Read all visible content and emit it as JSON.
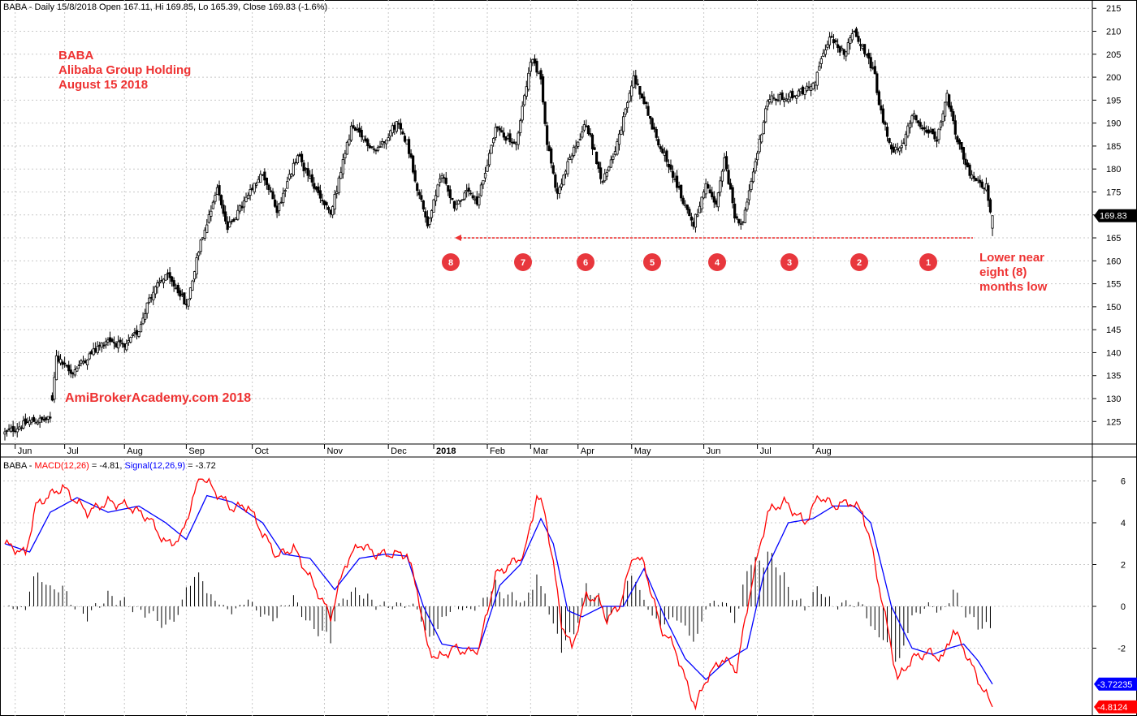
{
  "price_panel": {
    "header": "BABA - Daily 15/8/2018 Open 167.11, Hi 169.85, Lo 165.39, Close 169.83 (-1.6%)",
    "title_lines": [
      "BABA",
      "Alibaba Group Holding",
      "August 15 2018"
    ],
    "watermark": "AmiBrokerAcademy.com  2018",
    "last_price_label": "169.83",
    "annotation_lines": [
      "Lower near",
      "eight (8)",
      "months low"
    ],
    "month_markers": [
      "8",
      "7",
      "6",
      "5",
      "4",
      "3",
      "2",
      "1"
    ]
  },
  "macd_panel": {
    "header_prefix": "BABA - ",
    "macd_label": "MACD(12,26)",
    "macd_value_text": " = -4.81, ",
    "signal_label": "Signal(12,26,9)",
    "signal_value_text": " = -3.72",
    "signal_last_label": "-3.72235",
    "macd_last_label": "-4.8124"
  },
  "colors": {
    "candle": "#000000",
    "macd_line": "#ff0000",
    "signal_line": "#0000ff",
    "annotation": "#ee3333",
    "grid": "#c8c8c8"
  },
  "chart_data": [
    {
      "type": "candlestick",
      "series": [
        {
          "name": "BABA",
          "kind": "ohlc"
        }
      ],
      "y_ticks": [
        125,
        130,
        135,
        140,
        145,
        150,
        155,
        160,
        165,
        170,
        175,
        180,
        185,
        190,
        195,
        200,
        205,
        210,
        215
      ],
      "ylim": [
        121,
        218
      ],
      "x_ticks": [
        "Jun",
        "Jul",
        "Aug",
        "Sep",
        "Oct",
        "Nov",
        "Dec",
        "2018",
        "Feb",
        "Mar",
        "Apr",
        "May",
        "Jun",
        "Jul",
        "Aug"
      ],
      "close_path": [
        {
          "t": 0,
          "v": 122.5
        },
        {
          "t": 12,
          "v": 125
        },
        {
          "t": 22,
          "v": 125.5
        },
        {
          "t": 25,
          "v": 139
        },
        {
          "t": 32,
          "v": 135.5
        },
        {
          "t": 40,
          "v": 139
        },
        {
          "t": 50,
          "v": 143
        },
        {
          "t": 58,
          "v": 141
        },
        {
          "t": 65,
          "v": 145
        },
        {
          "t": 70,
          "v": 152
        },
        {
          "t": 78,
          "v": 157
        },
        {
          "t": 85,
          "v": 153
        },
        {
          "t": 88,
          "v": 150
        },
        {
          "t": 95,
          "v": 164
        },
        {
          "t": 103,
          "v": 176
        },
        {
          "t": 108,
          "v": 167
        },
        {
          "t": 115,
          "v": 172
        },
        {
          "t": 125,
          "v": 179
        },
        {
          "t": 132,
          "v": 171
        },
        {
          "t": 142,
          "v": 183
        },
        {
          "t": 150,
          "v": 176
        },
        {
          "t": 158,
          "v": 170
        },
        {
          "t": 168,
          "v": 189
        },
        {
          "t": 180,
          "v": 184
        },
        {
          "t": 190,
          "v": 190
        },
        {
          "t": 195,
          "v": 186
        },
        {
          "t": 200,
          "v": 176
        },
        {
          "t": 205,
          "v": 168
        },
        {
          "t": 212,
          "v": 179
        },
        {
          "t": 218,
          "v": 172
        },
        {
          "t": 225,
          "v": 175
        },
        {
          "t": 229,
          "v": 172
        },
        {
          "t": 238,
          "v": 189
        },
        {
          "t": 248,
          "v": 185
        },
        {
          "t": 255,
          "v": 204
        },
        {
          "t": 260,
          "v": 200
        },
        {
          "t": 263,
          "v": 186
        },
        {
          "t": 268,
          "v": 174
        },
        {
          "t": 273,
          "v": 181
        },
        {
          "t": 282,
          "v": 190
        },
        {
          "t": 290,
          "v": 177
        },
        {
          "t": 298,
          "v": 187
        },
        {
          "t": 305,
          "v": 200
        },
        {
          "t": 310,
          "v": 195
        },
        {
          "t": 315,
          "v": 188
        },
        {
          "t": 322,
          "v": 181
        },
        {
          "t": 328,
          "v": 174
        },
        {
          "t": 334,
          "v": 168
        },
        {
          "t": 340,
          "v": 176
        },
        {
          "t": 345,
          "v": 172
        },
        {
          "t": 349,
          "v": 182
        },
        {
          "t": 354,
          "v": 170
        },
        {
          "t": 358,
          "v": 168
        },
        {
          "t": 362,
          "v": 177
        },
        {
          "t": 370,
          "v": 195
        },
        {
          "t": 382,
          "v": 196
        },
        {
          "t": 392,
          "v": 198
        },
        {
          "t": 400,
          "v": 209
        },
        {
          "t": 407,
          "v": 205
        },
        {
          "t": 412,
          "v": 210
        },
        {
          "t": 418,
          "v": 205
        },
        {
          "t": 422,
          "v": 200
        },
        {
          "t": 424,
          "v": 194
        },
        {
          "t": 430,
          "v": 184
        },
        {
          "t": 435,
          "v": 185
        },
        {
          "t": 440,
          "v": 192
        },
        {
          "t": 448,
          "v": 188
        },
        {
          "t": 452,
          "v": 186
        },
        {
          "t": 457,
          "v": 196
        },
        {
          "t": 462,
          "v": 186
        },
        {
          "t": 467,
          "v": 180
        },
        {
          "t": 470,
          "v": 178
        },
        {
          "t": 476,
          "v": 176
        },
        {
          "t": 478,
          "v": 170
        },
        {
          "t": 479,
          "v": 169.83
        }
      ],
      "last_bar": {
        "open": 167.11,
        "high": 169.85,
        "low": 165.39,
        "close": 169.83
      },
      "support_line": 165,
      "annotations": [
        "Lower near eight (8) months low"
      ]
    },
    {
      "type": "line",
      "series": [
        {
          "name": "MACD(12,26)",
          "last": -4.81,
          "path": [
            {
              "t": 0,
              "v": 3.0
            },
            {
              "t": 10,
              "v": 2.5
            },
            {
              "t": 15,
              "v": 4.8
            },
            {
              "t": 20,
              "v": 5.2
            },
            {
              "t": 28,
              "v": 5.7
            },
            {
              "t": 40,
              "v": 4.5
            },
            {
              "t": 50,
              "v": 5.0
            },
            {
              "t": 60,
              "v": 4.8
            },
            {
              "t": 70,
              "v": 4.2
            },
            {
              "t": 78,
              "v": 3.0
            },
            {
              "t": 85,
              "v": 3.2
            },
            {
              "t": 95,
              "v": 6.3
            },
            {
              "t": 102,
              "v": 5.5
            },
            {
              "t": 110,
              "v": 4.7
            },
            {
              "t": 118,
              "v": 4.8
            },
            {
              "t": 125,
              "v": 3.5
            },
            {
              "t": 132,
              "v": 2.4
            },
            {
              "t": 140,
              "v": 2.8
            },
            {
              "t": 150,
              "v": 1.0
            },
            {
              "t": 158,
              "v": -0.5
            },
            {
              "t": 165,
              "v": 2.0
            },
            {
              "t": 172,
              "v": 3.0
            },
            {
              "t": 180,
              "v": 2.5
            },
            {
              "t": 190,
              "v": 2.5
            },
            {
              "t": 195,
              "v": 2.5
            },
            {
              "t": 200,
              "v": 0.8
            },
            {
              "t": 205,
              "v": -2.0
            },
            {
              "t": 210,
              "v": -2.5
            },
            {
              "t": 218,
              "v": -2.0
            },
            {
              "t": 225,
              "v": -2.2
            },
            {
              "t": 230,
              "v": -2.0
            },
            {
              "t": 238,
              "v": 1.5
            },
            {
              "t": 245,
              "v": 2.0
            },
            {
              "t": 252,
              "v": 2.5
            },
            {
              "t": 258,
              "v": 5.3
            },
            {
              "t": 262,
              "v": 4.5
            },
            {
              "t": 266,
              "v": 2.0
            },
            {
              "t": 270,
              "v": -0.8
            },
            {
              "t": 275,
              "v": -2.0
            },
            {
              "t": 282,
              "v": 0.5
            },
            {
              "t": 288,
              "v": 0.3
            },
            {
              "t": 292,
              "v": -0.6
            },
            {
              "t": 298,
              "v": 0.0
            },
            {
              "t": 305,
              "v": 2.5
            },
            {
              "t": 310,
              "v": 2.0
            },
            {
              "t": 318,
              "v": -1.0
            },
            {
              "t": 325,
              "v": -2.0
            },
            {
              "t": 330,
              "v": -3.5
            },
            {
              "t": 335,
              "v": -4.8
            },
            {
              "t": 340,
              "v": -3.5
            },
            {
              "t": 348,
              "v": -2.5
            },
            {
              "t": 355,
              "v": -3.0
            },
            {
              "t": 362,
              "v": 1.0
            },
            {
              "t": 370,
              "v": 4.5
            },
            {
              "t": 378,
              "v": 5.0
            },
            {
              "t": 388,
              "v": 4.0
            },
            {
              "t": 395,
              "v": 5.3
            },
            {
              "t": 402,
              "v": 4.8
            },
            {
              "t": 410,
              "v": 5.0
            },
            {
              "t": 416,
              "v": 4.5
            },
            {
              "t": 420,
              "v": 3.0
            },
            {
              "t": 428,
              "v": -1.0
            },
            {
              "t": 433,
              "v": -3.5
            },
            {
              "t": 440,
              "v": -2.5
            },
            {
              "t": 448,
              "v": -2.2
            },
            {
              "t": 455,
              "v": -2.5
            },
            {
              "t": 460,
              "v": -1.1
            },
            {
              "t": 465,
              "v": -2.0
            },
            {
              "t": 472,
              "v": -3.5
            },
            {
              "t": 479,
              "v": -4.81
            }
          ]
        },
        {
          "name": "Signal(12,26,9)",
          "last": -3.72,
          "path": [
            {
              "t": 0,
              "v": 3.0
            },
            {
              "t": 12,
              "v": 2.6
            },
            {
              "t": 22,
              "v": 4.5
            },
            {
              "t": 35,
              "v": 5.2
            },
            {
              "t": 50,
              "v": 4.5
            },
            {
              "t": 65,
              "v": 4.8
            },
            {
              "t": 78,
              "v": 4.0
            },
            {
              "t": 88,
              "v": 3.2
            },
            {
              "t": 98,
              "v": 5.3
            },
            {
              "t": 110,
              "v": 5.0
            },
            {
              "t": 125,
              "v": 4.0
            },
            {
              "t": 135,
              "v": 2.5
            },
            {
              "t": 148,
              "v": 2.3
            },
            {
              "t": 160,
              "v": 0.8
            },
            {
              "t": 172,
              "v": 2.3
            },
            {
              "t": 185,
              "v": 2.5
            },
            {
              "t": 195,
              "v": 2.4
            },
            {
              "t": 203,
              "v": 0.0
            },
            {
              "t": 212,
              "v": -1.8
            },
            {
              "t": 222,
              "v": -2.0
            },
            {
              "t": 230,
              "v": -2.0
            },
            {
              "t": 240,
              "v": 1.0
            },
            {
              "t": 250,
              "v": 2.0
            },
            {
              "t": 260,
              "v": 4.2
            },
            {
              "t": 266,
              "v": 3.0
            },
            {
              "t": 273,
              "v": -0.2
            },
            {
              "t": 280,
              "v": -0.5
            },
            {
              "t": 290,
              "v": 0.0
            },
            {
              "t": 300,
              "v": 0.0
            },
            {
              "t": 310,
              "v": 1.8
            },
            {
              "t": 320,
              "v": -0.5
            },
            {
              "t": 330,
              "v": -2.5
            },
            {
              "t": 340,
              "v": -3.5
            },
            {
              "t": 350,
              "v": -2.6
            },
            {
              "t": 360,
              "v": -2.0
            },
            {
              "t": 368,
              "v": 1.5
            },
            {
              "t": 380,
              "v": 4.0
            },
            {
              "t": 392,
              "v": 4.2
            },
            {
              "t": 402,
              "v": 4.8
            },
            {
              "t": 412,
              "v": 4.8
            },
            {
              "t": 420,
              "v": 4.0
            },
            {
              "t": 430,
              "v": 0.0
            },
            {
              "t": 440,
              "v": -2.0
            },
            {
              "t": 450,
              "v": -2.3
            },
            {
              "t": 458,
              "v": -2.0
            },
            {
              "t": 465,
              "v": -1.8
            },
            {
              "t": 472,
              "v": -2.6
            },
            {
              "t": 479,
              "v": -3.72
            }
          ]
        }
      ],
      "histogram": "MACD minus Signal",
      "y_ticks": [
        -2,
        0,
        2,
        4,
        6
      ],
      "ylim": [
        -5.2,
        7.0
      ]
    }
  ]
}
